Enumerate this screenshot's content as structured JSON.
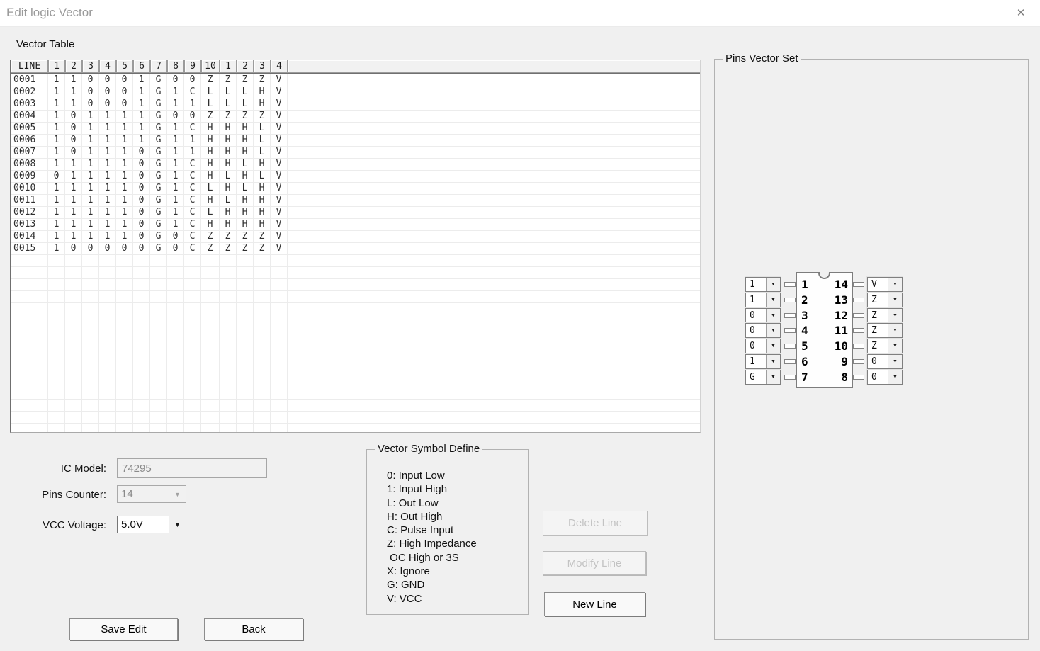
{
  "window": {
    "title": "Edit logic Vector"
  },
  "icons": {
    "close": "✕",
    "dropdown_arrow": "▼"
  },
  "colors": {
    "dialog_bg": "#f0f0f0",
    "titlebar_bg": "#ffffff"
  },
  "vector_table": {
    "label": "Vector Table",
    "columns": [
      "LINE",
      "1",
      "2",
      "3",
      "4",
      "5",
      "6",
      "7",
      "8",
      "9",
      "10",
      "1",
      "2",
      "3",
      "4"
    ],
    "rows": [
      {
        "line": "0001",
        "values": [
          "1",
          "1",
          "0",
          "0",
          "0",
          "1",
          "G",
          "0",
          "0",
          "Z",
          "Z",
          "Z",
          "Z",
          "V"
        ]
      },
      {
        "line": "0002",
        "values": [
          "1",
          "1",
          "0",
          "0",
          "0",
          "1",
          "G",
          "1",
          "C",
          "L",
          "L",
          "L",
          "H",
          "V"
        ]
      },
      {
        "line": "0003",
        "values": [
          "1",
          "1",
          "0",
          "0",
          "0",
          "1",
          "G",
          "1",
          "1",
          "L",
          "L",
          "L",
          "H",
          "V"
        ]
      },
      {
        "line": "0004",
        "values": [
          "1",
          "0",
          "1",
          "1",
          "1",
          "1",
          "G",
          "0",
          "0",
          "Z",
          "Z",
          "Z",
          "Z",
          "V"
        ]
      },
      {
        "line": "0005",
        "values": [
          "1",
          "0",
          "1",
          "1",
          "1",
          "1",
          "G",
          "1",
          "C",
          "H",
          "H",
          "H",
          "L",
          "V"
        ]
      },
      {
        "line": "0006",
        "values": [
          "1",
          "0",
          "1",
          "1",
          "1",
          "1",
          "G",
          "1",
          "1",
          "H",
          "H",
          "H",
          "L",
          "V"
        ]
      },
      {
        "line": "0007",
        "values": [
          "1",
          "0",
          "1",
          "1",
          "1",
          "0",
          "G",
          "1",
          "1",
          "H",
          "H",
          "H",
          "L",
          "V"
        ]
      },
      {
        "line": "0008",
        "values": [
          "1",
          "1",
          "1",
          "1",
          "1",
          "0",
          "G",
          "1",
          "C",
          "H",
          "H",
          "L",
          "H",
          "V"
        ]
      },
      {
        "line": "0009",
        "values": [
          "0",
          "1",
          "1",
          "1",
          "1",
          "0",
          "G",
          "1",
          "C",
          "H",
          "L",
          "H",
          "L",
          "V"
        ]
      },
      {
        "line": "0010",
        "values": [
          "1",
          "1",
          "1",
          "1",
          "1",
          "0",
          "G",
          "1",
          "C",
          "L",
          "H",
          "L",
          "H",
          "V"
        ]
      },
      {
        "line": "0011",
        "values": [
          "1",
          "1",
          "1",
          "1",
          "1",
          "0",
          "G",
          "1",
          "C",
          "H",
          "L",
          "H",
          "H",
          "V"
        ]
      },
      {
        "line": "0012",
        "values": [
          "1",
          "1",
          "1",
          "1",
          "1",
          "0",
          "G",
          "1",
          "C",
          "L",
          "H",
          "H",
          "H",
          "V"
        ]
      },
      {
        "line": "0013",
        "values": [
          "1",
          "1",
          "1",
          "1",
          "1",
          "0",
          "G",
          "1",
          "C",
          "H",
          "H",
          "H",
          "H",
          "V"
        ]
      },
      {
        "line": "0014",
        "values": [
          "1",
          "1",
          "1",
          "1",
          "1",
          "0",
          "G",
          "0",
          "C",
          "Z",
          "Z",
          "Z",
          "Z",
          "V"
        ]
      },
      {
        "line": "0015",
        "values": [
          "1",
          "0",
          "0",
          "0",
          "0",
          "0",
          "G",
          "0",
          "C",
          "Z",
          "Z",
          "Z",
          "Z",
          "V"
        ]
      }
    ]
  },
  "pins_vector_set": {
    "label": "Pins Vector Set",
    "left_pins": [
      {
        "pin": "1",
        "value": "1"
      },
      {
        "pin": "2",
        "value": "1"
      },
      {
        "pin": "3",
        "value": "0"
      },
      {
        "pin": "4",
        "value": "0"
      },
      {
        "pin": "5",
        "value": "0"
      },
      {
        "pin": "6",
        "value": "1"
      },
      {
        "pin": "7",
        "value": "G"
      }
    ],
    "right_pins": [
      {
        "pin": "14",
        "value": "V"
      },
      {
        "pin": "13",
        "value": "Z"
      },
      {
        "pin": "12",
        "value": "Z"
      },
      {
        "pin": "11",
        "value": "Z"
      },
      {
        "pin": "10",
        "value": "Z"
      },
      {
        "pin": "9",
        "value": "0"
      },
      {
        "pin": "8",
        "value": "0"
      }
    ]
  },
  "ic_settings": {
    "ic_model_label": "IC Model:",
    "ic_model_value": "74295",
    "pins_counter_label": "Pins Counter:",
    "pins_counter_value": "14",
    "vcc_voltage_label": "VCC Voltage:",
    "vcc_voltage_value": "5.0V"
  },
  "symbol_define": {
    "label": "Vector Symbol Define",
    "items": [
      "0: Input Low",
      "1: Input High",
      "L: Out Low",
      "H: Out High",
      "C: Pulse Input",
      "Z: High Impedance",
      " OC High or 3S",
      "X: Ignore",
      "G: GND",
      "V: VCC"
    ]
  },
  "buttons": {
    "delete_line": "Delete Line",
    "modify_line": "Modify Line",
    "new_line": "New Line",
    "save_edit": "Save Edit",
    "back": "Back"
  }
}
